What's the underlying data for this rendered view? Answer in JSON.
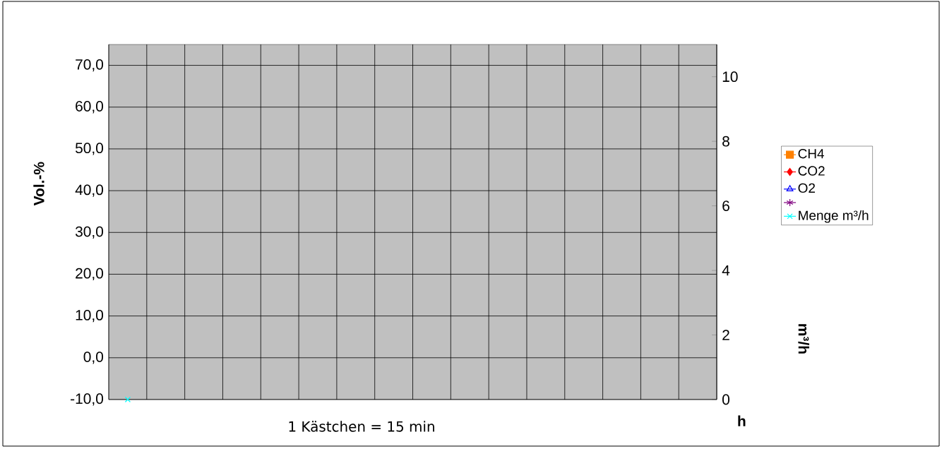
{
  "chart_data": {
    "type": "line",
    "xlabel": "h",
    "ylabel": "Vol.-%",
    "y2label": "m³/h",
    "annotations": [
      "1 Kästchen = 15 min"
    ],
    "categories": [
      null,
      null,
      null,
      null,
      null,
      null,
      null,
      null,
      null,
      null,
      null,
      null,
      null,
      null,
      null,
      null
    ],
    "series": [
      {
        "name": "CH4",
        "color": "#ff8000",
        "marker": "square",
        "values": [
          null,
          null,
          null,
          null,
          null,
          null,
          null,
          null,
          null,
          null,
          null,
          null,
          null,
          null,
          null,
          null
        ]
      },
      {
        "name": "CO2",
        "color": "#ff0000",
        "marker": "diamond",
        "values": [
          null,
          null,
          null,
          null,
          null,
          null,
          null,
          null,
          null,
          null,
          null,
          null,
          null,
          null,
          null,
          null
        ]
      },
      {
        "name": "O2",
        "color": "#0000ff",
        "marker": "triangle",
        "values": [
          null,
          null,
          null,
          null,
          null,
          null,
          null,
          null,
          null,
          null,
          null,
          null,
          null,
          null,
          null,
          null
        ]
      },
      {
        "color": "#800080",
        "marker": "star",
        "values": [
          null,
          null,
          null,
          null,
          null,
          null,
          null,
          null,
          null,
          null,
          null,
          null,
          null,
          null,
          null,
          null
        ]
      },
      {
        "name": "Menge m³/h",
        "color": "#00ffff",
        "marker": "cross",
        "axis": "y2",
        "values": [
          0,
          null,
          null,
          null,
          null,
          null,
          null,
          null,
          null,
          null,
          null,
          null,
          null,
          null,
          null,
          null
        ]
      }
    ],
    "ylim": [
      -10,
      75
    ],
    "yticks": [
      {
        "value": -10,
        "label": "-10,0"
      },
      {
        "value": 0,
        "label": "0,0"
      },
      {
        "value": 10,
        "label": "10,0"
      },
      {
        "value": 20,
        "label": "20,0"
      },
      {
        "value": 30,
        "label": "30,0"
      },
      {
        "value": 40,
        "label": "40,0"
      },
      {
        "value": 50,
        "label": "50,0"
      },
      {
        "value": 60,
        "label": "60,0"
      },
      {
        "value": 70,
        "label": "70,0"
      }
    ],
    "y2lim": [
      0,
      11
    ],
    "y2ticks": [
      0,
      2,
      4,
      6,
      8,
      10
    ],
    "grid": true,
    "legend": "right"
  }
}
